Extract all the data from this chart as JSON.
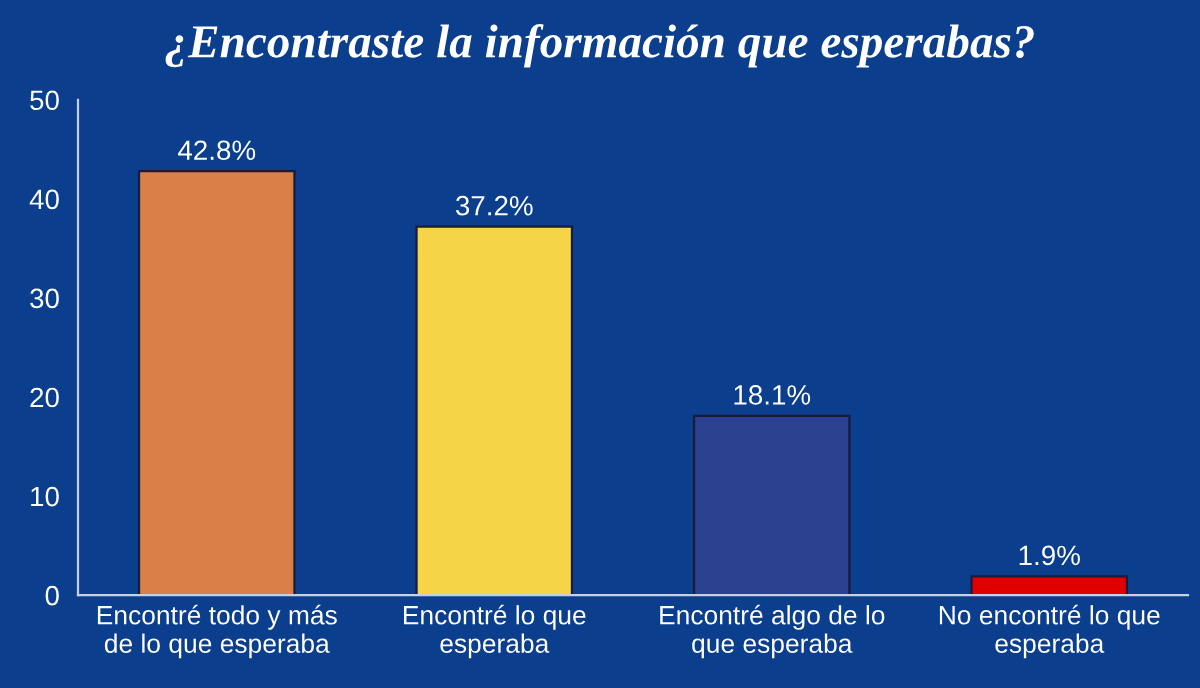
{
  "chart_data": {
    "type": "bar",
    "title": "¿Encontraste la información que esperabas?",
    "categories": [
      "Encontré todo y más\nde lo que esperaba",
      "Encontré lo que\nesperaba",
      "Encontré algo de lo\nque esperaba",
      "No encontré lo que\nesperaba"
    ],
    "values": [
      42.8,
      37.2,
      18.1,
      1.9
    ],
    "colors": [
      "#d98048",
      "#f5d448",
      "#2c4190",
      "#e00000"
    ],
    "value_labels": [
      "42.8%",
      "37.2%",
      "18.1%",
      "1.9%"
    ],
    "ylim": [
      0,
      50
    ],
    "yticks": [
      0,
      10,
      20,
      30,
      40,
      50
    ],
    "grid": false,
    "legend": false
  }
}
